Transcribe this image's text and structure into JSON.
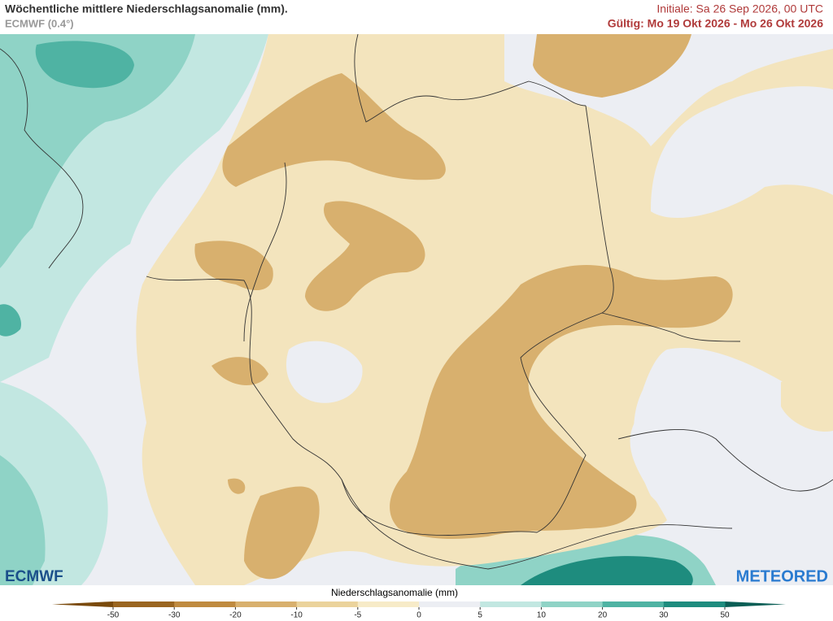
{
  "header": {
    "title": "Wöchentliche mittlere Niederschlagsanomalie (mm).",
    "model": "ECMWF (0.4°)",
    "initial": "Initiale:  Sa 26 Sep 2026, 00 UTC",
    "valid": "Gültig: Mo 19 Okt 2026 - Mo 26 Okt 2026"
  },
  "colorbar": {
    "label": "Niederschlagsanomalie (mm)",
    "ticks": [
      -50,
      -30,
      -20,
      -10,
      -5,
      0,
      5,
      10,
      20,
      30,
      50
    ],
    "colors": [
      "#7a4a0c",
      "#9a6520",
      "#bf8a40",
      "#d8b06e",
      "#ebd39c",
      "#f7ebc8",
      "#eceef3",
      "#c2e7e1",
      "#8fd3c6",
      "#4fb3a3",
      "#1e8c7e",
      "#0a5e55"
    ]
  },
  "logos": {
    "left": "ECMWF",
    "right": "METEORED"
  }
}
